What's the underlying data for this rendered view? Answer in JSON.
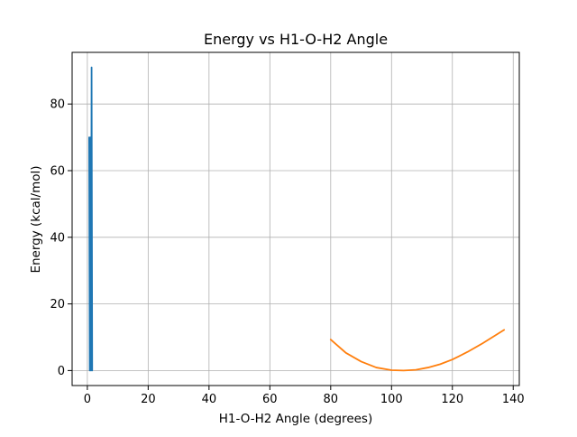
{
  "chart_data": {
    "type": "line",
    "title": "Energy vs H1-O-H2 Angle",
    "xlabel": "H1-O-H2 Angle (degrees)",
    "ylabel": "Energy (kcal/mol)",
    "xlim": [
      -5,
      142
    ],
    "ylim": [
      -4.5,
      95.5
    ],
    "xticks": [
      0,
      20,
      40,
      60,
      80,
      100,
      120,
      140
    ],
    "yticks": [
      0,
      20,
      40,
      60,
      80
    ],
    "grid": true,
    "legend": "none",
    "series": [
      {
        "color": "#1f77b4",
        "x": [
          0.6,
          0.8,
          1.0,
          1.2,
          1.4,
          1.6
        ],
        "y": [
          70.0,
          0.0,
          70.0,
          0.0,
          91.0,
          0.0
        ]
      },
      {
        "color": "#ff7f0e",
        "x": [
          80,
          85,
          90,
          95,
          100,
          104,
          108,
          112,
          116,
          120,
          125,
          130,
          137
        ],
        "y": [
          9.3,
          5.3,
          2.7,
          0.9,
          0.1,
          0.0,
          0.2,
          0.9,
          1.9,
          3.3,
          5.6,
          8.2,
          12.2
        ]
      }
    ]
  }
}
